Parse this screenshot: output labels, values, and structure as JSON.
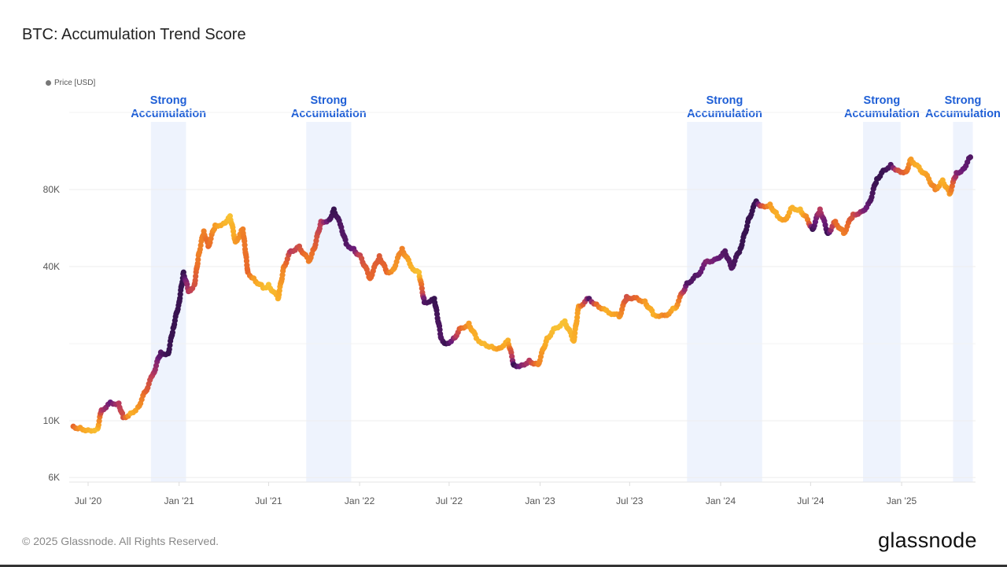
{
  "title": "BTC: Accumulation Trend Score",
  "legend": {
    "label": "Price [USD]",
    "color": "#777777"
  },
  "footer": {
    "copyright": "© 2025 Glassnode. All Rights Reserved.",
    "logo": "glassnode"
  },
  "chart_data": {
    "type": "scatter",
    "title": "BTC: Accumulation Trend Score",
    "y_scale": "log",
    "ylim": [
      5760,
      185000
    ],
    "y_ticks": [
      {
        "value": 6000,
        "label": "6K"
      },
      {
        "value": 10000,
        "label": "10K"
      },
      {
        "value": 40000,
        "label": "40K"
      },
      {
        "value": 80000,
        "label": "80K"
      }
    ],
    "x_ticks": [
      {
        "date": "2020-07-01",
        "label": "Jul '20"
      },
      {
        "date": "2021-01-01",
        "label": "Jan '21"
      },
      {
        "date": "2021-07-01",
        "label": "Jul '21"
      },
      {
        "date": "2022-01-01",
        "label": "Jan '22"
      },
      {
        "date": "2022-07-01",
        "label": "Jul '22"
      },
      {
        "date": "2023-01-01",
        "label": "Jan '23"
      },
      {
        "date": "2023-07-01",
        "label": "Jul '23"
      },
      {
        "date": "2024-01-01",
        "label": "Jan '24"
      },
      {
        "date": "2024-07-01",
        "label": "Jul '24"
      },
      {
        "date": "2025-01-01",
        "label": "Jan '25"
      }
    ],
    "xlim": [
      "2020-06-01",
      "2025-06-01"
    ],
    "grid": true,
    "legend_position": "top-left",
    "color_scale": {
      "low": "#f7d13d",
      "mid": "#e8672a",
      "high": "#1f0f3d",
      "note_values": "score 0 to 1"
    },
    "band_color": "#eef3fd",
    "annotations": [
      {
        "start": "2020-11-05",
        "end": "2021-01-15",
        "line1": "Strong",
        "line2": "Accumulation"
      },
      {
        "start": "2021-09-15",
        "end": "2021-12-15",
        "line1": "Strong",
        "line2": "Accumulation"
      },
      {
        "start": "2023-10-25",
        "end": "2024-03-25",
        "line1": "Strong",
        "line2": "Accumulation"
      },
      {
        "start": "2024-10-15",
        "end": "2024-12-30",
        "line1": "Strong",
        "line2": "Accumulation"
      },
      {
        "start": "2025-04-15",
        "end": "2025-05-25",
        "line1": "Strong",
        "line2": "Accumulation"
      }
    ],
    "series": [
      {
        "name": "Price [USD]",
        "points": [
          [
            "2020-06-01",
            9500,
            0.5
          ],
          [
            "2020-06-15",
            9400,
            0.3
          ],
          [
            "2020-07-01",
            9200,
            0.2
          ],
          [
            "2020-07-20",
            9300,
            0.1
          ],
          [
            "2020-07-28",
            11000,
            0.7
          ],
          [
            "2020-08-15",
            11800,
            0.85
          ],
          [
            "2020-09-01",
            11700,
            0.7
          ],
          [
            "2020-09-10",
            10300,
            0.6
          ],
          [
            "2020-09-25",
            10700,
            0.2
          ],
          [
            "2020-10-10",
            11300,
            0.3
          ],
          [
            "2020-10-25",
            13000,
            0.5
          ],
          [
            "2020-11-10",
            15300,
            0.7
          ],
          [
            "2020-11-25",
            18500,
            0.9
          ],
          [
            "2020-12-10",
            18300,
            0.95
          ],
          [
            "2020-12-20",
            23000,
            0.95
          ],
          [
            "2021-01-01",
            29000,
            0.95
          ],
          [
            "2021-01-10",
            38000,
            0.95
          ],
          [
            "2021-01-20",
            32000,
            0.7
          ],
          [
            "2021-02-01",
            34000,
            0.6
          ],
          [
            "2021-02-10",
            45000,
            0.4
          ],
          [
            "2021-02-20",
            55000,
            0.4
          ],
          [
            "2021-03-01",
            48000,
            0.5
          ],
          [
            "2021-03-15",
            58000,
            0.3
          ],
          [
            "2021-04-01",
            59000,
            0.2
          ],
          [
            "2021-04-14",
            63000,
            0.1
          ],
          [
            "2021-04-25",
            50000,
            0.3
          ],
          [
            "2021-05-10",
            56000,
            0.4
          ],
          [
            "2021-05-20",
            38000,
            0.5
          ],
          [
            "2021-06-01",
            36000,
            0.3
          ],
          [
            "2021-06-20",
            33000,
            0.15
          ],
          [
            "2021-07-01",
            34000,
            0.1
          ],
          [
            "2021-07-20",
            30000,
            0.2
          ],
          [
            "2021-08-01",
            40000,
            0.4
          ],
          [
            "2021-08-15",
            46000,
            0.7
          ],
          [
            "2021-09-01",
            48000,
            0.6
          ],
          [
            "2021-09-20",
            42000,
            0.4
          ],
          [
            "2021-10-01",
            47000,
            0.5
          ],
          [
            "2021-10-15",
            60000,
            0.7
          ],
          [
            "2021-11-01",
            61000,
            0.9
          ],
          [
            "2021-11-10",
            67000,
            0.95
          ],
          [
            "2021-11-25",
            57000,
            0.9
          ],
          [
            "2021-12-05",
            49000,
            0.9
          ],
          [
            "2021-12-20",
            47000,
            0.85
          ],
          [
            "2022-01-05",
            43000,
            0.6
          ],
          [
            "2022-01-22",
            36000,
            0.5
          ],
          [
            "2022-02-10",
            44000,
            0.55
          ],
          [
            "2022-02-25",
            38000,
            0.5
          ],
          [
            "2022-03-10",
            39000,
            0.3
          ],
          [
            "2022-03-28",
            47000,
            0.4
          ],
          [
            "2022-04-15",
            40000,
            0.2
          ],
          [
            "2022-05-01",
            38000,
            0.1
          ],
          [
            "2022-05-12",
            29000,
            0.9
          ],
          [
            "2022-06-01",
            30000,
            0.95
          ],
          [
            "2022-06-15",
            21000,
            0.9
          ],
          [
            "2022-06-25",
            20000,
            0.95
          ],
          [
            "2022-07-10",
            21000,
            0.8
          ],
          [
            "2022-07-25",
            23000,
            0.5
          ],
          [
            "2022-08-10",
            24000,
            0.3
          ],
          [
            "2022-08-25",
            21000,
            0.2
          ],
          [
            "2022-09-10",
            20000,
            0.15
          ],
          [
            "2022-09-25",
            19500,
            0.2
          ],
          [
            "2022-10-10",
            19200,
            0.3
          ],
          [
            "2022-10-28",
            20600,
            0.2
          ],
          [
            "2022-11-09",
            16500,
            0.95
          ],
          [
            "2022-11-25",
            16500,
            0.8
          ],
          [
            "2022-12-10",
            17200,
            0.7
          ],
          [
            "2022-12-28",
            16600,
            0.4
          ],
          [
            "2023-01-15",
            21000,
            0.2
          ],
          [
            "2023-02-01",
            23000,
            0.1
          ],
          [
            "2023-02-20",
            24500,
            0.1
          ],
          [
            "2023-03-10",
            20500,
            0.2
          ],
          [
            "2023-03-20",
            28000,
            0.3
          ],
          [
            "2023-04-10",
            30000,
            0.9
          ],
          [
            "2023-04-25",
            28500,
            0.5
          ],
          [
            "2023-05-15",
            27000,
            0.2
          ],
          [
            "2023-06-10",
            25500,
            0.3
          ],
          [
            "2023-06-25",
            30500,
            0.6
          ],
          [
            "2023-07-15",
            30200,
            0.5
          ],
          [
            "2023-08-01",
            29300,
            0.3
          ],
          [
            "2023-08-18",
            26000,
            0.2
          ],
          [
            "2023-09-10",
            25800,
            0.4
          ],
          [
            "2023-10-01",
            27500,
            0.2
          ],
          [
            "2023-10-25",
            34500,
            0.9
          ],
          [
            "2023-11-15",
            37000,
            0.9
          ],
          [
            "2023-12-05",
            42000,
            0.8
          ],
          [
            "2023-12-25",
            43000,
            0.85
          ],
          [
            "2024-01-10",
            46000,
            0.9
          ],
          [
            "2024-01-23",
            39500,
            0.9
          ],
          [
            "2024-02-10",
            47000,
            0.95
          ],
          [
            "2024-02-28",
            62000,
            0.95
          ],
          [
            "2024-03-13",
            72000,
            0.95
          ],
          [
            "2024-03-25",
            69000,
            0.6
          ],
          [
            "2024-04-10",
            70000,
            0.3
          ],
          [
            "2024-04-25",
            63000,
            0.2
          ],
          [
            "2024-05-10",
            61000,
            0.3
          ],
          [
            "2024-05-25",
            68000,
            0.2
          ],
          [
            "2024-06-10",
            67000,
            0.15
          ],
          [
            "2024-06-25",
            61000,
            0.4
          ],
          [
            "2024-07-05",
            56000,
            0.95
          ],
          [
            "2024-07-20",
            67000,
            0.7
          ],
          [
            "2024-08-05",
            54000,
            0.95
          ],
          [
            "2024-08-20",
            60000,
            0.5
          ],
          [
            "2024-09-06",
            54000,
            0.4
          ],
          [
            "2024-09-25",
            64000,
            0.6
          ],
          [
            "2024-10-15",
            66000,
            0.8
          ],
          [
            "2024-10-29",
            72000,
            0.9
          ],
          [
            "2024-11-12",
            88000,
            0.95
          ],
          [
            "2024-11-25",
            95000,
            0.95
          ],
          [
            "2024-12-10",
            100000,
            0.9
          ],
          [
            "2024-12-25",
            95000,
            0.6
          ],
          [
            "2025-01-10",
            94000,
            0.5
          ],
          [
            "2025-01-20",
            105000,
            0.3
          ],
          [
            "2025-02-05",
            98000,
            0.2
          ],
          [
            "2025-02-25",
            88000,
            0.3
          ],
          [
            "2025-03-10",
            80000,
            0.4
          ],
          [
            "2025-03-25",
            87000,
            0.2
          ],
          [
            "2025-04-08",
            77000,
            0.3
          ],
          [
            "2025-04-22",
            93000,
            0.8
          ],
          [
            "2025-05-05",
            96000,
            0.85
          ],
          [
            "2025-05-20",
            107000,
            0.9
          ]
        ]
      }
    ]
  }
}
